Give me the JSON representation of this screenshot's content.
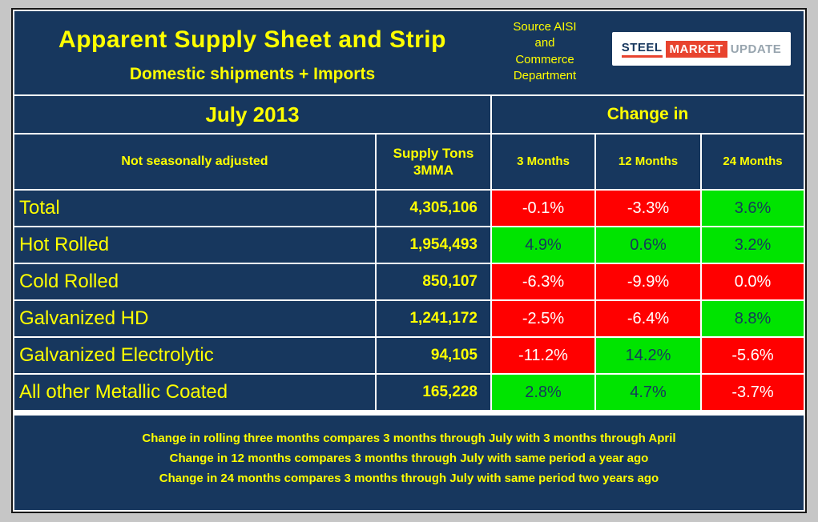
{
  "header": {
    "title": "Apparent Supply Sheet and Strip",
    "subtitle": "Domestic shipments + Imports",
    "source": "Source AISI\nand\nCommerce\nDepartment",
    "period": "July 2013",
    "change_in": "Change in"
  },
  "logo": {
    "steel": "STEEL",
    "market": "MARKET",
    "update": "UPDATE"
  },
  "colors": {
    "background_navy": "#17375E",
    "text_yellow": "#FFFF00",
    "negative_red": "#FF0000",
    "positive_green": "#00E400",
    "gridline_white": "#FFFFFF"
  },
  "table": {
    "headers": {
      "row_label": "Not seasonally adjusted",
      "supply": "Supply Tons\n3MMA",
      "m3": "3 Months",
      "m12": "12 Months",
      "m24": "24 Months"
    },
    "rows": [
      {
        "label": "Total",
        "supply": "4,305,106",
        "changes": [
          {
            "value": "-0.1%",
            "state": "neg"
          },
          {
            "value": "-3.3%",
            "state": "neg"
          },
          {
            "value": "3.6%",
            "state": "pos"
          }
        ]
      },
      {
        "label": "Hot Rolled",
        "supply": "1,954,493",
        "changes": [
          {
            "value": "4.9%",
            "state": "pos"
          },
          {
            "value": "0.6%",
            "state": "pos"
          },
          {
            "value": "3.2%",
            "state": "pos"
          }
        ]
      },
      {
        "label": "Cold Rolled",
        "supply": "850,107",
        "changes": [
          {
            "value": "-6.3%",
            "state": "neg"
          },
          {
            "value": "-9.9%",
            "state": "neg"
          },
          {
            "value": "0.0%",
            "state": "neg"
          }
        ]
      },
      {
        "label": "Galvanized HD",
        "supply": "1,241,172",
        "changes": [
          {
            "value": "-2.5%",
            "state": "neg"
          },
          {
            "value": "-6.4%",
            "state": "neg"
          },
          {
            "value": "8.8%",
            "state": "pos"
          }
        ]
      },
      {
        "label": "Galvanized Electrolytic",
        "supply": "94,105",
        "changes": [
          {
            "value": "-11.2%",
            "state": "neg"
          },
          {
            "value": "14.2%",
            "state": "pos"
          },
          {
            "value": "-5.6%",
            "state": "neg"
          }
        ]
      },
      {
        "label": "All other Metallic Coated",
        "supply": "165,228",
        "changes": [
          {
            "value": "2.8%",
            "state": "pos"
          },
          {
            "value": "4.7%",
            "state": "pos"
          },
          {
            "value": "-3.7%",
            "state": "neg"
          }
        ]
      }
    ]
  },
  "footnotes": [
    "Change in rolling three months compares 3 months through July with 3 months through April",
    "Change in 12 months compares 3 months through July with same period a year ago",
    "Change in 24 months compares 3 months through July with same period two years ago"
  ]
}
